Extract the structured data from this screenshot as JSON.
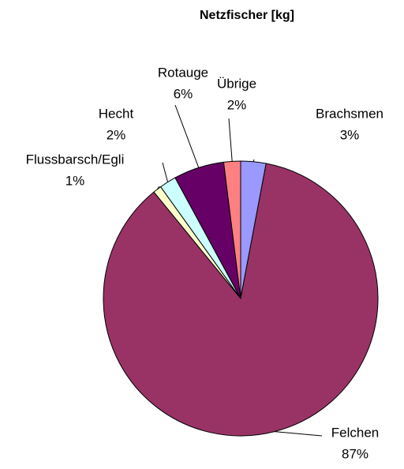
{
  "chart_data": {
    "type": "pie",
    "title": "Netzfischer [kg]",
    "categories": [
      "Brachsmen",
      "Felchen",
      "Flussbarsch/Egli",
      "Hecht",
      "Rotauge",
      "Übrige"
    ],
    "values": [
      3,
      87,
      1,
      2,
      6,
      2
    ],
    "value_labels": [
      "3%",
      "87%",
      "1%",
      "2%",
      "6%",
      "2%"
    ],
    "colors": [
      "#9999ff",
      "#993366",
      "#ffffcc",
      "#ccffff",
      "#660066",
      "#ff8080"
    ]
  }
}
